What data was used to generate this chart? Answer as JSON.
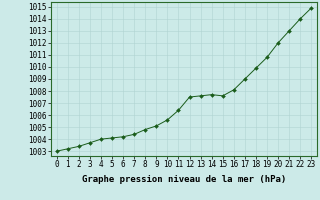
{
  "x": [
    0,
    1,
    2,
    3,
    4,
    5,
    6,
    7,
    8,
    9,
    10,
    11,
    12,
    13,
    14,
    15,
    16,
    17,
    18,
    19,
    20,
    21,
    22,
    23
  ],
  "y": [
    1003.0,
    1003.2,
    1003.4,
    1003.7,
    1004.0,
    1004.1,
    1004.2,
    1004.4,
    1004.8,
    1005.1,
    1005.6,
    1006.4,
    1007.5,
    1007.6,
    1007.7,
    1007.6,
    1008.1,
    1009.0,
    1009.9,
    1010.8,
    1012.0,
    1013.0,
    1014.0,
    1014.9
  ],
  "line_color": "#1a5c1a",
  "marker_color": "#1a5c1a",
  "bg_color": "#cceae8",
  "grid_color": "#b0d4d2",
  "ylabel_ticks": [
    1003,
    1004,
    1005,
    1006,
    1007,
    1008,
    1009,
    1010,
    1011,
    1012,
    1013,
    1014,
    1015
  ],
  "xlabel": "Graphe pression niveau de la mer (hPa)",
  "ylim_min": 1002.6,
  "ylim_max": 1015.4,
  "xlim_min": -0.5,
  "xlim_max": 23.5,
  "xlabel_fontsize": 6.5,
  "tick_fontsize": 5.5
}
